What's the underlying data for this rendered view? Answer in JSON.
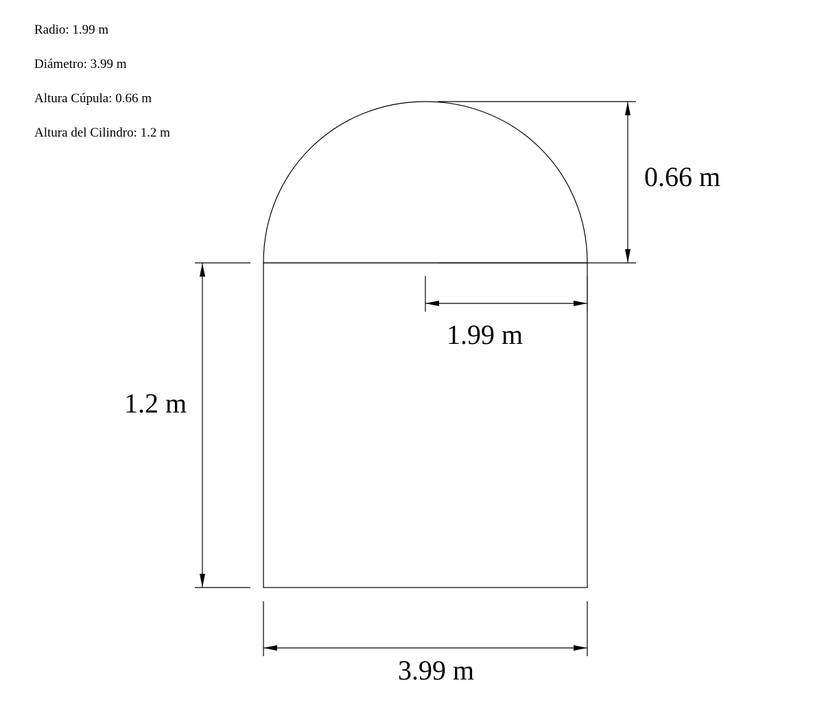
{
  "info": {
    "radio": "Radio: 1.99 m",
    "diametro": "Diámetro: 3.99 m",
    "altura_cupula": "Altura Cúpula: 0.66 m",
    "altura_cilindro": "Altura del Cilindro: 1.2 m"
  },
  "dimensions": {
    "dome_height": "0.66 m",
    "radius": "1.99 m",
    "cylinder_height": "1.2 m",
    "diameter": "3.99 m"
  },
  "colors": {
    "stroke": "#000000",
    "background": "#ffffff"
  }
}
